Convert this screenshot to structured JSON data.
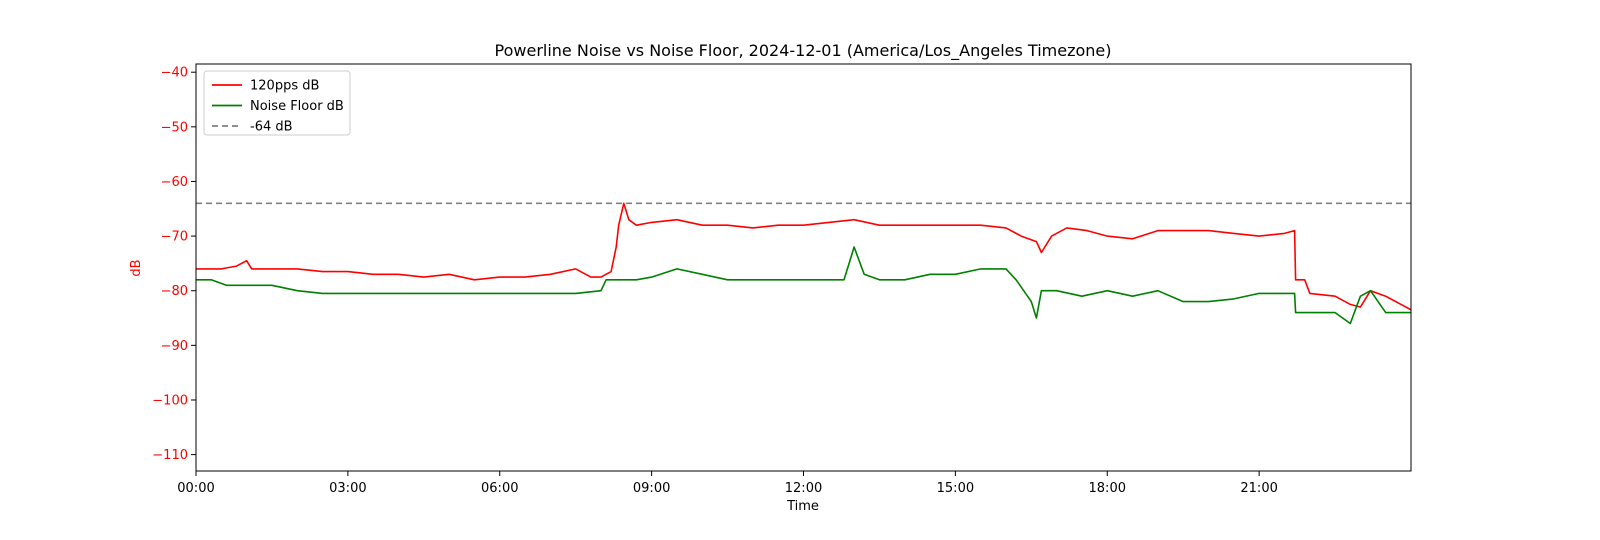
{
  "chart_data": {
    "type": "line",
    "title": "Powerline Noise vs Noise Floor, 2024-12-01 (America/Los_Angeles Timezone)",
    "xlabel": "Time",
    "ylabel": "dB",
    "ylabel_color": "#ff0000",
    "xlim": [
      0,
      24
    ],
    "ylim": [
      -113,
      -38.5
    ],
    "x_unit": "hours since 00:00 on 2024-12-01",
    "x_ticks": [
      {
        "value": 0,
        "label": "00:00"
      },
      {
        "value": 3,
        "label": "03:00"
      },
      {
        "value": 6,
        "label": "06:00"
      },
      {
        "value": 9,
        "label": "09:00"
      },
      {
        "value": 12,
        "label": "12:00"
      },
      {
        "value": 15,
        "label": "15:00"
      },
      {
        "value": 18,
        "label": "18:00"
      },
      {
        "value": 21,
        "label": "21:00"
      }
    ],
    "y_ticks": [
      {
        "value": -40,
        "label": "−40"
      },
      {
        "value": -50,
        "label": "−50"
      },
      {
        "value": -60,
        "label": "−60"
      },
      {
        "value": -70,
        "label": "−70"
      },
      {
        "value": -80,
        "label": "−80"
      },
      {
        "value": -90,
        "label": "−90"
      },
      {
        "value": -100,
        "label": "−100"
      },
      {
        "value": -110,
        "label": "−110"
      }
    ],
    "grid": false,
    "legend_position": "upper-left",
    "series": [
      {
        "name": "120pps dB",
        "color": "#ff0000",
        "style": "solid",
        "x": [
          0,
          0.5,
          0.8,
          1.0,
          1.1,
          1.3,
          1.6,
          2.0,
          2.5,
          3.0,
          3.5,
          4.0,
          4.5,
          5.0,
          5.5,
          6.0,
          6.5,
          7.0,
          7.5,
          7.8,
          8.0,
          8.2,
          8.3,
          8.35,
          8.45,
          8.55,
          8.7,
          9.0,
          9.5,
          10.0,
          10.5,
          11.0,
          11.5,
          12.0,
          12.5,
          13.0,
          13.5,
          14.0,
          14.5,
          15.0,
          15.5,
          16.0,
          16.3,
          16.6,
          16.7,
          16.9,
          17.2,
          17.6,
          18.0,
          18.5,
          19.0,
          19.5,
          20.0,
          20.5,
          21.0,
          21.5,
          21.7,
          21.72,
          21.9,
          22.0,
          22.5,
          22.8,
          23.0,
          23.2,
          23.5,
          24.0
        ],
        "y": [
          -76,
          -76,
          -75.5,
          -74.5,
          -76,
          -76,
          -76,
          -76,
          -76.5,
          -76.5,
          -77,
          -77,
          -77.5,
          -77,
          -78,
          -77.5,
          -77.5,
          -77,
          -76,
          -77.5,
          -77.5,
          -76.5,
          -72,
          -68,
          -64,
          -67,
          -68,
          -67.5,
          -67,
          -68,
          -68,
          -68.5,
          -68,
          -68,
          -67.5,
          -67,
          -68,
          -68,
          -68,
          -68,
          -68,
          -68.5,
          -70,
          -71,
          -73,
          -70,
          -68.5,
          -69,
          -70,
          -70.5,
          -69,
          -69,
          -69,
          -69.5,
          -70,
          -69.5,
          -69,
          -78,
          -78,
          -80.5,
          -81,
          -82.5,
          -83,
          -80,
          -81,
          -83.5
        ]
      },
      {
        "name": "Noise Floor dB",
        "color": "#008000",
        "style": "solid",
        "x": [
          0,
          0.3,
          0.6,
          1.0,
          1.5,
          2.0,
          2.5,
          3.0,
          3.5,
          4.0,
          5.0,
          6.0,
          7.0,
          7.5,
          8.0,
          8.1,
          8.5,
          8.7,
          9.0,
          9.5,
          10.0,
          10.5,
          11.0,
          11.5,
          12.0,
          12.5,
          12.8,
          12.9,
          13.0,
          13.2,
          13.5,
          14.0,
          14.5,
          15.0,
          15.5,
          16.0,
          16.2,
          16.5,
          16.6,
          16.7,
          16.85,
          17.0,
          17.5,
          18.0,
          18.5,
          19.0,
          19.5,
          20.0,
          20.5,
          21.0,
          21.5,
          21.7,
          21.72,
          21.9,
          22.0,
          22.5,
          22.8,
          23.0,
          23.2,
          23.5,
          24.0
        ],
        "y": [
          -78,
          -78,
          -79,
          -79,
          -79,
          -80,
          -80.5,
          -80.5,
          -80.5,
          -80.5,
          -80.5,
          -80.5,
          -80.5,
          -80.5,
          -80,
          -78,
          -78,
          -78,
          -77.5,
          -76,
          -77,
          -78,
          -78,
          -78,
          -78,
          -78,
          -78,
          -75,
          -72,
          -77,
          -78,
          -78,
          -77,
          -77,
          -76,
          -76,
          -78,
          -82,
          -85,
          -80,
          -80,
          -80,
          -81,
          -80,
          -81,
          -80,
          -82,
          -82,
          -81.5,
          -80.5,
          -80.5,
          -80.5,
          -84,
          -84,
          -84,
          -84,
          -86,
          -81,
          -80,
          -84,
          -84
        ]
      },
      {
        "name": "-64 dB",
        "color": "#808080",
        "style": "dashed",
        "x": [
          0,
          24
        ],
        "y": [
          -64,
          -64
        ]
      }
    ]
  }
}
